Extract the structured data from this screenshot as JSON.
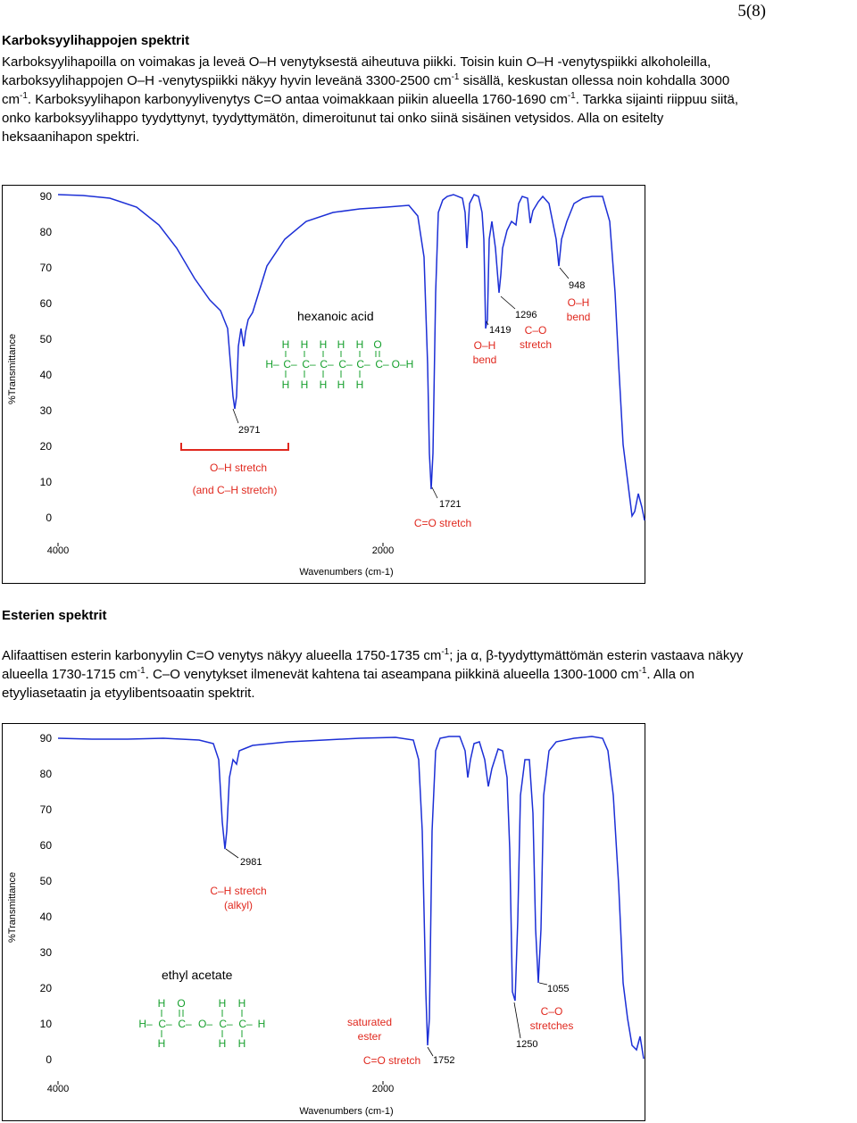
{
  "page_number": "5(8)",
  "section1": {
    "title": "Karboksyylihappojen spektrit",
    "para": [
      "Karboksyylihapoilla on voimakas ja leveä O–H venytyksestä aiheutuva piikki. Toisin kuin O–H -venytyspiikki alkoholeilla,",
      "karboksyylihappojen O–H -venytyspiikki näkyy hyvin leveänä 3300-2500 cm",
      " sisällä, keskustan ollessa noin kohdalla 3000",
      "cm",
      ". Karboksyylihapon karbonyylivenytys C=O antaa voimakkaan piikin alueella 1760-1690 cm",
      ". Tarkka sijainti riippuu siitä,",
      "onko karboksyylihappo tyydyttynyt, tyydyttymätön, dimeroitunut tai onko siinä sisäinen vetysidos. Alla on esitelty",
      "heksaanihapon spektri."
    ],
    "sup": "-1"
  },
  "section2": {
    "title": "Esterien spektrit",
    "para": [
      "Alifaattisen esterin karbonyylin C=O venytys näkyy alueella 1750-1735 cm",
      "; ja α, β-tyydyttymättömän esterin vastaava näkyy",
      "alueella 1730-1715 cm",
      ". C–O venytykset ilmenevät kahtena tai aseampana piikkinä alueella 1300-1000 cm",
      ". Alla on",
      "etyyliasetaatin ja etyylibentsoaatin spektrit."
    ],
    "sup": "-1"
  },
  "spectrum1": {
    "title": "hexanoic acid",
    "ylabel": "%Transmittance",
    "xlabel": "Wavenumbers (cm-1)",
    "yticks": [
      "90",
      "80",
      "70",
      "60",
      "50",
      "40",
      "30",
      "20",
      "10",
      "0"
    ],
    "xticks": [
      "4000",
      "2000"
    ],
    "annotations": {
      "p2971": "2971",
      "oh_stretch": "O–H stretch",
      "oh_stretch2": "(and C–H stretch)",
      "p1721": "1721",
      "co_stretch": "C=O stretch",
      "p1419": "1419",
      "oh_bend1": "O–H",
      "oh_bend2": "bend",
      "p1296": "1296",
      "c_o1": "C–O",
      "c_o2": "stretch",
      "p948": "948",
      "oh_bend3": "O–H",
      "oh_bend4": "bend"
    },
    "structure": {
      "top": [
        "H",
        "H",
        "H",
        "H",
        "H",
        "O"
      ],
      "mid": [
        "H–",
        "C–",
        "C–",
        "C–",
        "C–",
        "C–",
        "C–",
        "O–H"
      ],
      "bot": [
        "H",
        "H",
        "H",
        "H",
        "H"
      ]
    },
    "colors": {
      "trace": "#1c2fd6",
      "annotation": "#e0281e",
      "structure": "#17a02e"
    }
  },
  "spectrum2": {
    "title": "ethyl acetate",
    "ylabel": "%Transmittance",
    "xlabel": "Wavenumbers (cm-1)",
    "yticks": [
      "90",
      "80",
      "70",
      "60",
      "50",
      "40",
      "30",
      "20",
      "10",
      "0"
    ],
    "xticks": [
      "4000",
      "2000"
    ],
    "annotations": {
      "p2981": "2981",
      "ch_stretch": "C–H stretch",
      "alkyl": "(alkyl)",
      "saturated": "saturated",
      "ester": "ester",
      "co_stretch": "C=O stretch",
      "p1752": "1752",
      "p1250": "1250",
      "p1055": "1055",
      "c_o": "C–O",
      "stretches": "stretches"
    },
    "structure": {
      "top": [
        "H",
        "O",
        "H",
        "H"
      ],
      "mid": [
        "H–",
        "C–",
        "C–",
        "O–",
        "C–",
        "C–",
        "H"
      ],
      "bot": [
        "H",
        "H",
        "H"
      ]
    },
    "colors": {
      "trace": "#1c2fd6",
      "annotation": "#e0281e",
      "structure": "#17a02e"
    }
  }
}
